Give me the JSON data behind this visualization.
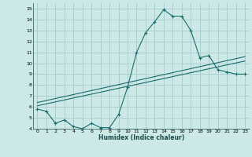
{
  "xlabel": "Humidex (Indice chaleur)",
  "xlim": [
    -0.5,
    23.5
  ],
  "ylim": [
    4,
    15.5
  ],
  "xticks": [
    0,
    1,
    2,
    3,
    4,
    5,
    6,
    7,
    8,
    9,
    10,
    11,
    12,
    13,
    14,
    15,
    16,
    17,
    18,
    19,
    20,
    21,
    22,
    23
  ],
  "yticks": [
    4,
    5,
    6,
    7,
    8,
    9,
    10,
    11,
    12,
    13,
    14,
    15
  ],
  "bg_color": "#cce9e8",
  "grid_color": "#aacfce",
  "line_color": "#1a6b6b",
  "line1_x": [
    0,
    1,
    2,
    3,
    4,
    5,
    6,
    7,
    8,
    9,
    10,
    11,
    12,
    13,
    14,
    15,
    16,
    17,
    18,
    19,
    20,
    21,
    22,
    23
  ],
  "line1_y": [
    5.8,
    5.6,
    4.5,
    4.8,
    4.2,
    4.0,
    4.5,
    4.1,
    4.1,
    5.3,
    7.8,
    11.0,
    12.8,
    13.8,
    14.9,
    14.3,
    14.3,
    13.0,
    10.5,
    10.7,
    9.4,
    9.2,
    9.0,
    9.0
  ],
  "line2_x": [
    0,
    23
  ],
  "line2_y": [
    6.1,
    10.2
  ],
  "line3_x": [
    0,
    23
  ],
  "line3_y": [
    6.4,
    10.6
  ]
}
